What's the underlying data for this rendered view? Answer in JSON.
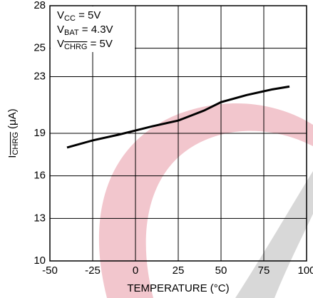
{
  "chart_data": {
    "type": "line",
    "x_label": "TEMPERATURE (°C)",
    "y_label": {
      "main": "I",
      "sub": "CHRG",
      "rest": " (μA)"
    },
    "annotations": [
      {
        "main": "V",
        "sub": "CC",
        "rest": " = 5V"
      },
      {
        "main": "V",
        "sub": "BAT",
        "rest": " = 4.3V"
      },
      {
        "main": "V",
        "sub": "CHRG",
        "rest": " = 5V"
      }
    ],
    "series": [
      {
        "color": "#000000",
        "x": [
          -40,
          -25,
          -10,
          0,
          10,
          25,
          40,
          50,
          65,
          80,
          90
        ],
        "values": [
          18.0,
          18.5,
          18.9,
          19.2,
          19.5,
          19.9,
          20.6,
          21.2,
          21.7,
          22.1,
          22.3
        ]
      }
    ],
    "xlim": [
      -50,
      100
    ],
    "xticks": [
      -50,
      -25,
      0,
      25,
      50,
      75,
      100
    ],
    "ylim": [
      10,
      28
    ],
    "yticks": [
      10,
      13,
      16,
      19,
      23,
      25,
      28
    ],
    "grid": true
  }
}
